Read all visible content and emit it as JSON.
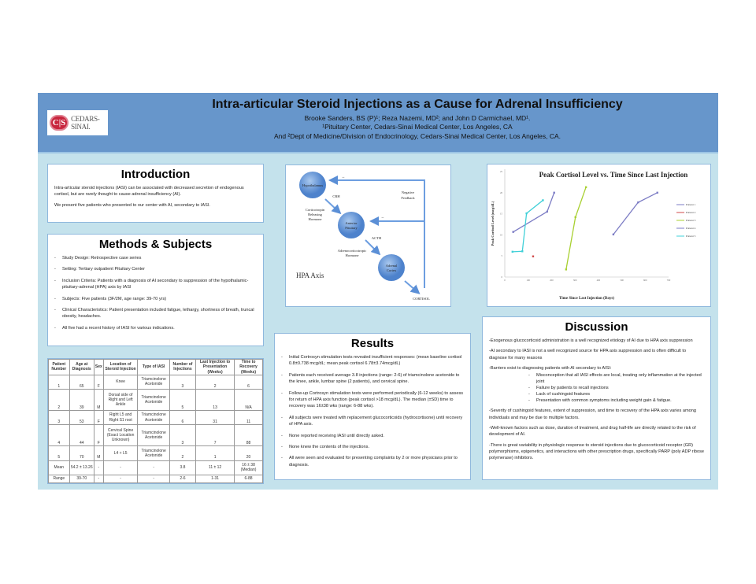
{
  "header": {
    "title": "Intra-articular Steroid Injections as a Cause for Adrenal Insufficiency",
    "authors": "Brooke Sanders, BS (P)¹; Reza Nazemi, MD²; and John D Carmichael, MD¹.",
    "affil1": "¹Pituitary Center, Cedars-Sinai Medical Center, Los Angeles, CA",
    "affil2": "And ²Dept of Medicine/Division of Endocrinology, Cedars-Sinai Medical Center, Los Angeles, CA.",
    "logo_mark": "C|S",
    "logo_text": "CEDARS-SINAI."
  },
  "intro": {
    "title": "Introduction",
    "paragraphs": [
      "Intra-articular steroid injections (IASI) can be associated with decreased secretion of endogenous cortisol, but are rarely thought to cause adrenal insufficiency (AI).",
      "We present five patients who presented to our center with AI, secondary to IASI."
    ]
  },
  "methods": {
    "title": "Methods & Subjects",
    "items": [
      "Study Design: Retrospective case series",
      "Setting: Tertiary outpatient Pituitary Center",
      "Inclusion Criteria: Patients with a diagnosis of AI secondary to suppression of the hypothalamic-pituitary-adrenal (HPA) axis by IASI",
      "Subjects: Five patients (3F/2M, age range: 39-70 yrs)",
      "Clinical Characteristics: Patient presentation included fatigue, lethargy, shortness of breath, truncal obesity, headaches.",
      "All five had a recent history of IASI for various indications."
    ]
  },
  "table": {
    "headers": [
      "Patient Number",
      "Age at Diagnosis",
      "Sex",
      "Location of Steroid Injection",
      "Type of IASI",
      "Number of Injections",
      "Last Injection to Presentation (Weeks)",
      "Time to Recovery (Weeks)"
    ],
    "rows": [
      [
        "1",
        "65",
        "F",
        "Knee",
        "Triamcinolone Acetonide",
        "3",
        "2",
        "6"
      ],
      [
        "2",
        "39",
        "M",
        "Dorsal side of Right and Left Ankle",
        "Triamcinolone Acetonide",
        "5",
        "13",
        "N/A"
      ],
      [
        "3",
        "53",
        "F",
        "Right L5 and Right S1 root",
        "Triamcinolone Acetonide",
        "6",
        "31",
        "11"
      ],
      [
        "4",
        "44",
        "F",
        "Cervical Spine (Exact Location Unknown)",
        "Triamcinolone Acetonide",
        "3",
        "7",
        "88"
      ],
      [
        "5",
        "70",
        "M",
        "L4 + L5",
        "Triamcinolone Acetonide",
        "2",
        "1",
        "20"
      ],
      [
        "Mean",
        "54.2 ± 13.26",
        "-",
        "-",
        "-",
        "3.8",
        "11 ± 12",
        "16 ± 38 (Median)"
      ],
      [
        "Range",
        "39-70",
        "-",
        "-",
        "-",
        "2-6",
        "1-31",
        "6-88"
      ]
    ]
  },
  "diagram": {
    "hypothalamus": "Hypothalamus",
    "crh": "CRH",
    "crh_full": [
      "Corticotropin",
      "Releasing",
      "Hormone"
    ],
    "pituitary": [
      "Anterior",
      "Pituitary"
    ],
    "acth": "ACTH",
    "acth_full": [
      "Adrenocorticotropic",
      "Hormone"
    ],
    "adrenal": [
      "Adrenal",
      "Cortex"
    ],
    "cortisol": "CORTISOL",
    "feedback": [
      "Negative",
      "Feedback"
    ],
    "minus": "−",
    "caption": "HPA Axis"
  },
  "results": {
    "title": "Results",
    "items": [
      "Initial Cortrosyn stimulation tests revealed insufficient responses: (mean baseline cortisol 0.8±0.738 mcg/dL; mean peak cortisol 6.78±3.74mcg/dL)",
      "Patients each received average 3.8 injections (range: 2-6) of triamcinolone acetonide to the knee, ankle, lumbar spine (2 patients), and cervical spine.",
      "Follow-up Cortrosyn stimulation tests were performed periodically (6-12 weeks) to assess for return of HPA axis function (peak cortisol >18 mcg/dL). The median (±SD) time to recovery was 16±38 wks (range: 6-88 wks).",
      "All subjects were treated with replacement glucocorticoids (hydrocortisone) until recovery of HPA axis.",
      "None reported receiving IASI until directly asked.",
      "None knew the contents of the injections.",
      "All were seen and evaluated for presenting complaints by 2 or more physicians prior to diagnosis."
    ]
  },
  "discussion": {
    "title": "Discussion",
    "p1": "-Exogenous glucocorticoid administration is a well recognized etiology of AI due to HPA axis suppression",
    "p2": "-AI secondary to IASI is not a well recognized source for HPA axis suppression and is often difficult to diagnose for many reasons",
    "p3": "-Barriers exist to diagnosing patients with AI secondary to AISI:",
    "sub": [
      "Misconception that all IASI effects are local, treating only inflammation at the injected joint",
      "Failure by patients to recall injections",
      "Lack of cushingoid features",
      "Presentation with common symptoms including weight gain & fatigue."
    ],
    "p4": "-Severity of cushingoid features, extent of suppression, and time to recovery of the HPA axis varies among individuals and may be due to multiple factors.",
    "p5": "-Well-known factors such as dose, duration of treatment, and drug half-life are directly related to the risk of development of AI.",
    "p6": "-There is great variability in physiologic response to steroid injections due to glucocorticoid receptor (GR) polymorphisms, epigenetics, and interactions with other prescription drugs, specifically PARP (poly ADP ribose polymerase) inhibitors."
  },
  "chart_data": {
    "type": "line",
    "title": "Peak Cortisol Level vs. Time Since Last Injection",
    "xlabel": "Time Since Last Injection (Days)",
    "ylabel": "Peak Cortisol Level (mcg/dL)",
    "xlim": [
      0,
      700
    ],
    "ylim": [
      0,
      25
    ],
    "xticks": [
      0,
      100,
      200,
      300,
      400,
      500,
      600,
      700
    ],
    "yticks": [
      0,
      5,
      10,
      15,
      20,
      25
    ],
    "grid": false,
    "legend": "right",
    "series": [
      {
        "name": "Patient 1",
        "color": "#7b7bc4",
        "points": [
          [
            36,
            10.7
          ],
          [
            181,
            15.5
          ],
          [
            211,
            20
          ]
        ]
      },
      {
        "name": "Patient 2",
        "color": "#d04848",
        "points": [
          [
            121,
            4.9
          ]
        ]
      },
      {
        "name": "Patient 3",
        "color": "#a8d030",
        "points": [
          [
            262,
            1.8
          ],
          [
            302,
            14.2
          ],
          [
            347,
            21.3
          ]
        ]
      },
      {
        "name": "Patient 4",
        "color": "#7b7bc4",
        "points": [
          [
            464,
            10.1
          ],
          [
            570,
            17.7
          ],
          [
            652,
            20
          ]
        ]
      },
      {
        "name": "Patient 5",
        "color": "#40d0d8",
        "points": [
          [
            33,
            6.0
          ],
          [
            75,
            6.1
          ],
          [
            93,
            15.1
          ],
          [
            163,
            18.2
          ]
        ]
      }
    ]
  }
}
